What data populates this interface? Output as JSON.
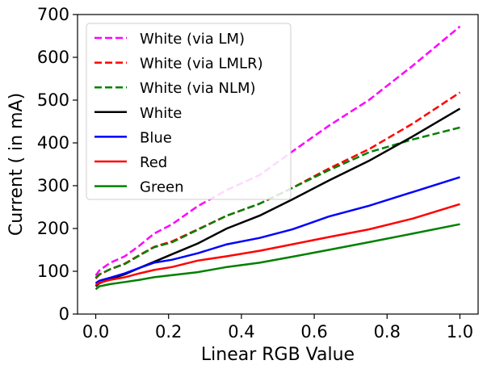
{
  "chart_data": {
    "type": "line",
    "title": "",
    "xlabel": "Linear RGB Value",
    "ylabel": "Current ( in mA)",
    "xlim": [
      -0.05,
      1.05
    ],
    "ylim": [
      0,
      700
    ],
    "xticks": [
      0.0,
      0.2,
      0.4,
      0.6,
      0.8,
      1.0
    ],
    "xtick_labels": [
      "0.0",
      "0.2",
      "0.4",
      "0.6",
      "0.8",
      "1.0"
    ],
    "yticks": [
      0,
      100,
      200,
      300,
      400,
      500,
      600,
      700
    ],
    "ytick_labels": [
      "0",
      "100",
      "200",
      "300",
      "400",
      "500",
      "600",
      "700"
    ],
    "grid": false,
    "legend_position": "top-left",
    "series": [
      {
        "name": "White (via LM)",
        "color": "#ff00ff",
        "dashed": true,
        "x": [
          0.0,
          0.01,
          0.04,
          0.08,
          0.12,
          0.16,
          0.21,
          0.28,
          0.36,
          0.45,
          0.54,
          0.64,
          0.75,
          0.87,
          1.0
        ],
        "y": [
          90,
          102,
          120,
          135,
          160,
          188,
          210,
          252,
          290,
          325,
          380,
          440,
          500,
          580,
          672
        ]
      },
      {
        "name": "White (via LMLR)",
        "color": "#ff0000",
        "dashed": true,
        "x": [
          0.0,
          0.01,
          0.04,
          0.08,
          0.12,
          0.16,
          0.21,
          0.28,
          0.36,
          0.45,
          0.54,
          0.64,
          0.75,
          0.87,
          1.0
        ],
        "y": [
          83,
          92,
          105,
          118,
          138,
          157,
          170,
          198,
          230,
          258,
          295,
          340,
          385,
          445,
          518
        ]
      },
      {
        "name": "White (via NLM)",
        "color": "#008000",
        "dashed": true,
        "x": [
          0.0,
          0.01,
          0.04,
          0.08,
          0.12,
          0.16,
          0.21,
          0.28,
          0.36,
          0.45,
          0.54,
          0.64,
          0.75,
          0.87,
          1.0
        ],
        "y": [
          85,
          93,
          105,
          117,
          137,
          156,
          168,
          197,
          230,
          258,
          295,
          336,
          378,
          408,
          436
        ]
      },
      {
        "name": "White",
        "color": "#000000",
        "dashed": false,
        "x": [
          0.0,
          0.01,
          0.04,
          0.08,
          0.12,
          0.16,
          0.21,
          0.28,
          0.36,
          0.45,
          0.54,
          0.64,
          0.75,
          0.87,
          1.0
        ],
        "y": [
          65,
          72,
          82,
          93,
          108,
          122,
          140,
          165,
          200,
          230,
          268,
          312,
          358,
          415,
          480
        ]
      },
      {
        "name": "Blue",
        "color": "#0000ff",
        "dashed": false,
        "x": [
          0.0,
          0.01,
          0.04,
          0.08,
          0.12,
          0.16,
          0.21,
          0.28,
          0.36,
          0.45,
          0.54,
          0.64,
          0.75,
          0.87,
          1.0
        ],
        "y": [
          72,
          78,
          85,
          95,
          108,
          120,
          127,
          142,
          163,
          178,
          198,
          228,
          253,
          285,
          320
        ]
      },
      {
        "name": "Red",
        "color": "#ff0000",
        "dashed": false,
        "x": [
          0.0,
          0.01,
          0.04,
          0.08,
          0.12,
          0.16,
          0.21,
          0.28,
          0.36,
          0.45,
          0.54,
          0.64,
          0.75,
          0.87,
          1.0
        ],
        "y": [
          68,
          73,
          80,
          86,
          95,
          103,
          110,
          125,
          135,
          148,
          163,
          180,
          198,
          223,
          257
        ]
      },
      {
        "name": "Green",
        "color": "#008000",
        "dashed": false,
        "x": [
          0.0,
          0.01,
          0.04,
          0.08,
          0.12,
          0.16,
          0.21,
          0.28,
          0.36,
          0.45,
          0.54,
          0.64,
          0.75,
          0.87,
          1.0
        ],
        "y": [
          58,
          65,
          70,
          75,
          80,
          86,
          91,
          98,
          110,
          120,
          134,
          150,
          168,
          188,
          210
        ]
      }
    ]
  }
}
